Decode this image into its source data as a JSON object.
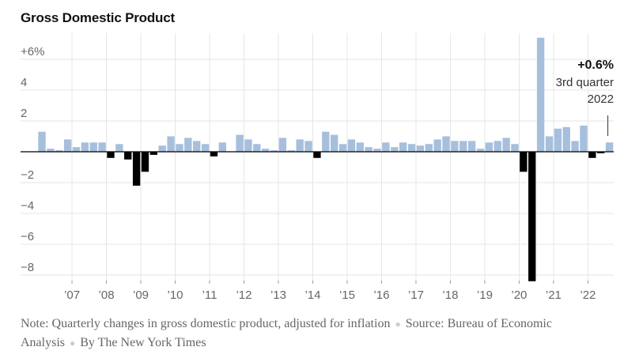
{
  "title": "Gross Domestic Product",
  "annotation": {
    "value": "+0.6%",
    "line1": "3rd quarter",
    "line2": "2022"
  },
  "footer": {
    "note": "Note: Quarterly changes in gross domestic product, adjusted for inflation",
    "source": "Source: Bureau of Economic Analysis",
    "byline": "By The New York Times"
  },
  "colors": {
    "positive": "#a6bfdc",
    "negative": "#000000",
    "grid": "#e6e6e6",
    "axis": "#000000",
    "label": "#666666"
  },
  "chart_data": {
    "type": "bar",
    "title": "Gross Domestic Product",
    "ylim": [
      -8.8,
      7.4
    ],
    "yticks": [
      {
        "value": 6,
        "label": "+6%"
      },
      {
        "value": 4,
        "label": "4"
      },
      {
        "value": 2,
        "label": "2"
      },
      {
        "value": -2,
        "label": "−2"
      },
      {
        "value": -4,
        "label": "−4"
      },
      {
        "value": -6,
        "label": "−6"
      },
      {
        "value": -8,
        "label": "−8"
      }
    ],
    "xticks": [
      "’07",
      "’08",
      "’09",
      "’10",
      "’11",
      "’12",
      "’13",
      "’14",
      "’15",
      "’16",
      "’17",
      "’18",
      "’19",
      "’20",
      "’21",
      "’22"
    ],
    "first_quarter": "2006 Q1",
    "values": [
      1.3,
      0.2,
      0.1,
      0.8,
      0.3,
      0.6,
      0.6,
      0.6,
      -0.4,
      0.5,
      -0.5,
      -2.2,
      -1.3,
      -0.2,
      0.4,
      1.0,
      0.5,
      0.9,
      0.7,
      0.5,
      -0.3,
      0.6,
      0.0,
      1.1,
      0.8,
      0.5,
      0.2,
      0.1,
      0.9,
      0.1,
      0.8,
      0.7,
      -0.4,
      1.3,
      1.1,
      0.5,
      0.8,
      0.6,
      0.3,
      0.2,
      0.6,
      0.3,
      0.6,
      0.5,
      0.4,
      0.5,
      0.8,
      1.0,
      0.7,
      0.7,
      0.7,
      0.2,
      0.6,
      0.7,
      0.9,
      0.5,
      -1.3,
      -8.4,
      7.5,
      1.0,
      1.5,
      1.6,
      0.7,
      1.7,
      -0.4,
      -0.1,
      0.6
    ],
    "grid": true
  }
}
